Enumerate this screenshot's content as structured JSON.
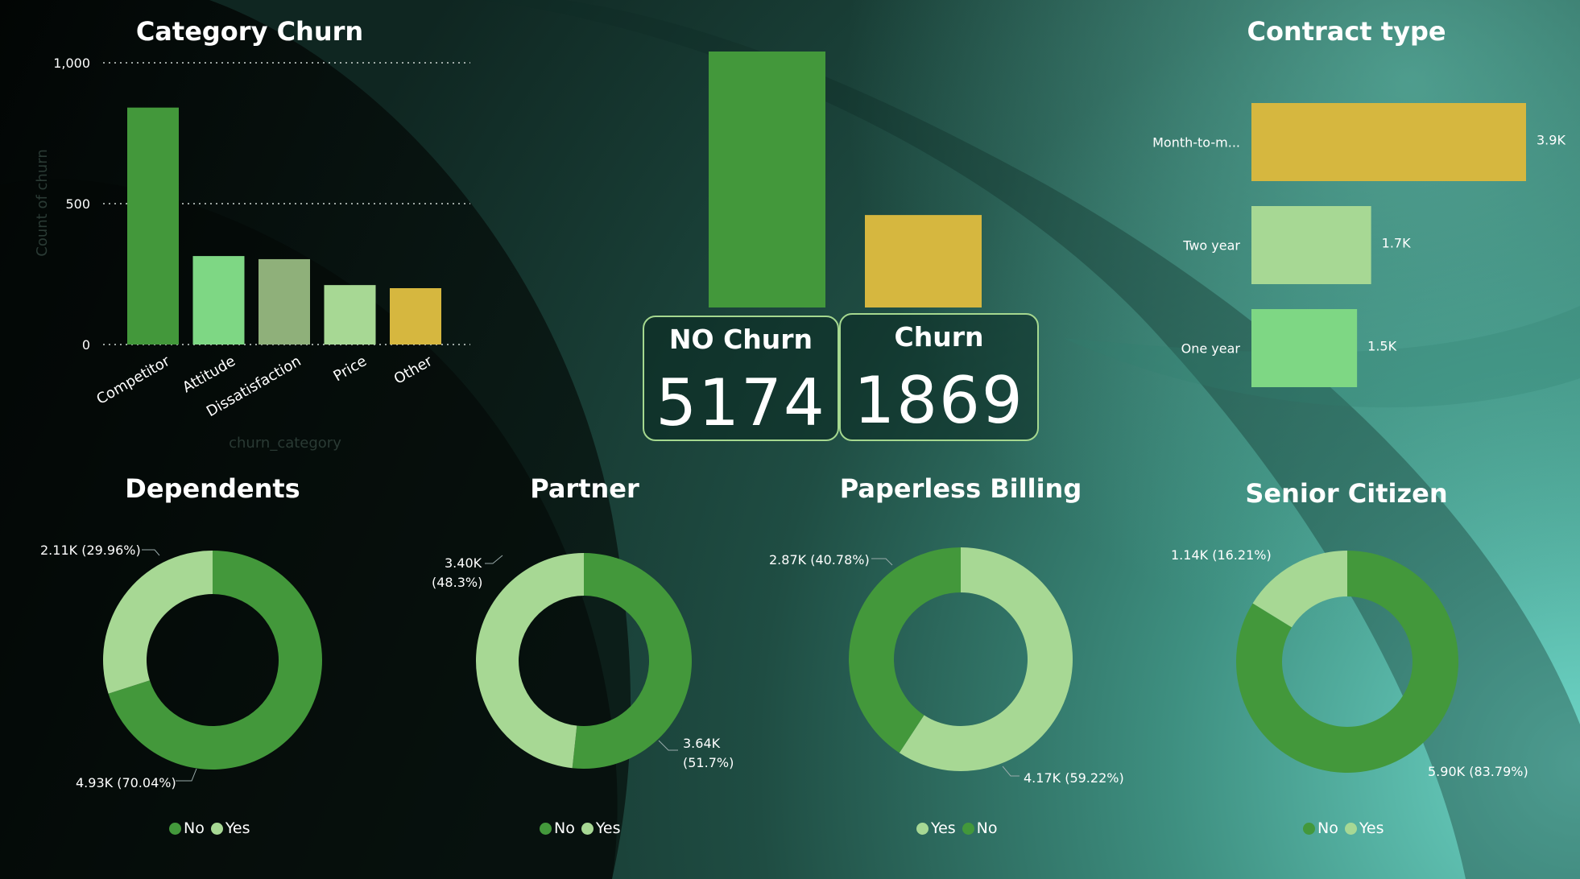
{
  "colors": {
    "dark_green": "#43983b",
    "light_green": "#a7d894",
    "mid_green": "#7ed784",
    "sage": "#8fb07a",
    "gold": "#d6b73f"
  },
  "category_churn": {
    "title": "Category Churn",
    "ylabel": "Count of churn",
    "xlabel": "churn_category",
    "ticks": [
      "0",
      "500",
      "1,000"
    ]
  },
  "kpis": {
    "no_churn_label": "NO Churn",
    "no_churn_value": "5174",
    "churn_label": "Churn",
    "churn_value": "1869"
  },
  "contract": {
    "title": "Contract type"
  },
  "donuts": {
    "dependents": {
      "title": "Dependents",
      "label_a": "2.11K (29.96%)",
      "label_b": "4.93K (70.04%)",
      "legend": [
        "No",
        "Yes"
      ]
    },
    "partner": {
      "title": "Partner",
      "label_a1": "3.40K",
      "label_a2": "(48.3%)",
      "label_b1": "3.64K",
      "label_b2": "(51.7%)",
      "legend": [
        "No",
        "Yes"
      ]
    },
    "paperless": {
      "title": "Paperless Billing",
      "label_a": "2.87K (40.78%)",
      "label_b": "4.17K (59.22%)",
      "legend": [
        "Yes",
        "No"
      ]
    },
    "senior": {
      "title": "Senior Citizen",
      "label_a": "1.14K (16.21%)",
      "label_b": "5.90K (83.79%)",
      "legend": [
        "No",
        "Yes"
      ]
    }
  },
  "chart_data": [
    {
      "type": "bar",
      "title": "Category Churn",
      "xlabel": "churn_category",
      "ylabel": "Count of churn",
      "categories": [
        "Competitor",
        "Attitude",
        "Dissatisfaction",
        "Price",
        "Other"
      ],
      "values": [
        841,
        314,
        303,
        211,
        200
      ],
      "colors": [
        "#43983b",
        "#7ed784",
        "#8fb07a",
        "#a7d894",
        "#d6b73f"
      ],
      "ylim": [
        0,
        1000
      ],
      "yticks": [
        0,
        500,
        1000
      ],
      "grid": true
    },
    {
      "type": "bar",
      "categories": [
        "NO Churn",
        "Churn"
      ],
      "values": [
        5174,
        1869
      ],
      "colors": [
        "#43983b",
        "#d6b73f"
      ]
    },
    {
      "type": "bar",
      "orientation": "horizontal",
      "title": "Contract type",
      "categories": [
        "Month-to-m...",
        "Two year",
        "One year"
      ],
      "values": [
        3900,
        1700,
        1500
      ],
      "data_labels": [
        "3.9K",
        "1.7K",
        "1.5K"
      ],
      "colors": [
        "#d6b73f",
        "#a7d894",
        "#7ed784"
      ]
    },
    {
      "type": "pie",
      "title": "Dependents",
      "donut": true,
      "categories": [
        "No",
        "Yes"
      ],
      "values": [
        4930,
        2110
      ],
      "percentages": [
        70.04,
        29.96
      ],
      "colors": [
        "#43983b",
        "#a7d894"
      ]
    },
    {
      "type": "pie",
      "title": "Partner",
      "donut": true,
      "categories": [
        "No",
        "Yes"
      ],
      "values": [
        3640,
        3400
      ],
      "percentages": [
        51.7,
        48.3
      ],
      "colors": [
        "#43983b",
        "#a7d894"
      ]
    },
    {
      "type": "pie",
      "title": "Paperless Billing",
      "donut": true,
      "categories": [
        "Yes",
        "No"
      ],
      "values": [
        4170,
        2870
      ],
      "percentages": [
        59.22,
        40.78
      ],
      "colors": [
        "#a7d894",
        "#43983b"
      ]
    },
    {
      "type": "pie",
      "title": "Senior Citizen",
      "donut": true,
      "categories": [
        "No",
        "Yes"
      ],
      "values": [
        5900,
        1140
      ],
      "percentages": [
        83.79,
        16.21
      ],
      "colors": [
        "#43983b",
        "#a7d894"
      ]
    }
  ]
}
